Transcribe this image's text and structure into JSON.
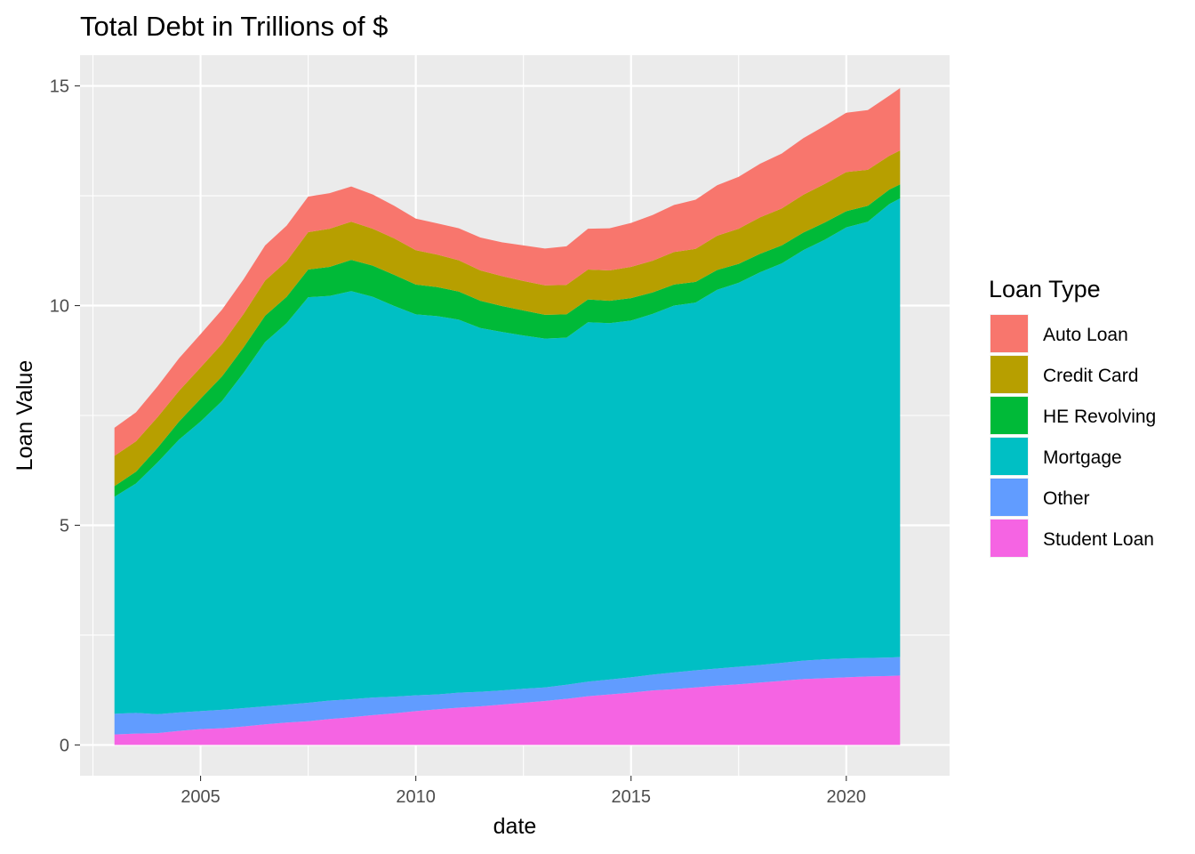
{
  "chart_data": {
    "type": "area",
    "stacked": true,
    "title": "Total Debt in Trillions of $",
    "xlabel": "date",
    "ylabel": "Loan Value",
    "xlim": [
      2002.2,
      2022.4
    ],
    "ylim": [
      -0.7,
      15.7
    ],
    "x_ticks": [
      2005,
      2010,
      2015,
      2020
    ],
    "x_tick_labels": [
      "2005",
      "2010",
      "2015",
      "2020"
    ],
    "y_ticks": [
      0,
      5,
      10,
      15
    ],
    "y_tick_labels": [
      "0",
      "5",
      "10",
      "15"
    ],
    "grid": true,
    "legend": {
      "title": "Loan Type",
      "position": "right",
      "entries": [
        "Auto Loan",
        "Credit Card",
        "HE Revolving",
        "Mortgage",
        "Other",
        "Student Loan"
      ]
    },
    "x": [
      2003.0,
      2003.5,
      2004.0,
      2004.5,
      2005.0,
      2005.5,
      2006.0,
      2006.5,
      2007.0,
      2007.5,
      2008.0,
      2008.5,
      2009.0,
      2009.5,
      2010.0,
      2010.5,
      2011.0,
      2011.5,
      2012.0,
      2012.5,
      2013.0,
      2013.5,
      2014.0,
      2014.5,
      2015.0,
      2015.5,
      2016.0,
      2016.5,
      2017.0,
      2017.5,
      2018.0,
      2018.5,
      2019.0,
      2019.5,
      2020.0,
      2020.5,
      2021.0,
      2021.25
    ],
    "series": [
      {
        "name": "Student Loan",
        "color": "#f564e3",
        "values": [
          0.24,
          0.26,
          0.27,
          0.32,
          0.36,
          0.38,
          0.42,
          0.47,
          0.51,
          0.54,
          0.59,
          0.63,
          0.68,
          0.72,
          0.77,
          0.81,
          0.85,
          0.88,
          0.92,
          0.96,
          1.0,
          1.05,
          1.11,
          1.15,
          1.19,
          1.24,
          1.27,
          1.31,
          1.35,
          1.38,
          1.42,
          1.46,
          1.5,
          1.52,
          1.54,
          1.56,
          1.57,
          1.58
        ]
      },
      {
        "name": "Other",
        "color": "#619cff",
        "values": [
          0.47,
          0.47,
          0.43,
          0.42,
          0.41,
          0.42,
          0.42,
          0.41,
          0.41,
          0.42,
          0.42,
          0.41,
          0.4,
          0.38,
          0.36,
          0.34,
          0.34,
          0.33,
          0.32,
          0.32,
          0.31,
          0.32,
          0.33,
          0.34,
          0.35,
          0.36,
          0.38,
          0.39,
          0.39,
          0.4,
          0.4,
          0.41,
          0.42,
          0.43,
          0.43,
          0.42,
          0.42,
          0.42
        ]
      },
      {
        "name": "Mortgage",
        "color": "#00bfc4",
        "values": [
          4.94,
          5.22,
          5.73,
          6.21,
          6.59,
          7.03,
          7.63,
          8.29,
          8.68,
          9.23,
          9.21,
          9.29,
          9.12,
          8.89,
          8.67,
          8.61,
          8.49,
          8.28,
          8.16,
          8.04,
          7.94,
          7.9,
          8.18,
          8.11,
          8.12,
          8.21,
          8.35,
          8.37,
          8.62,
          8.74,
          8.94,
          9.09,
          9.34,
          9.55,
          9.81,
          9.93,
          10.32,
          10.44
        ]
      },
      {
        "name": "HE Revolving",
        "color": "#00ba38",
        "values": [
          0.24,
          0.27,
          0.33,
          0.41,
          0.52,
          0.56,
          0.58,
          0.6,
          0.6,
          0.63,
          0.66,
          0.71,
          0.71,
          0.71,
          0.68,
          0.66,
          0.64,
          0.62,
          0.59,
          0.57,
          0.54,
          0.53,
          0.52,
          0.51,
          0.51,
          0.49,
          0.48,
          0.47,
          0.45,
          0.43,
          0.42,
          0.41,
          0.4,
          0.39,
          0.37,
          0.36,
          0.33,
          0.32
        ]
      },
      {
        "name": "Credit Card",
        "color": "#b79f00",
        "values": [
          0.69,
          0.69,
          0.7,
          0.7,
          0.71,
          0.74,
          0.76,
          0.8,
          0.81,
          0.85,
          0.87,
          0.87,
          0.84,
          0.83,
          0.78,
          0.74,
          0.71,
          0.69,
          0.68,
          0.67,
          0.67,
          0.67,
          0.68,
          0.69,
          0.71,
          0.72,
          0.74,
          0.75,
          0.78,
          0.8,
          0.83,
          0.84,
          0.86,
          0.88,
          0.89,
          0.82,
          0.77,
          0.77
        ]
      },
      {
        "name": "Auto Loan",
        "color": "#f8766d",
        "values": [
          0.64,
          0.66,
          0.7,
          0.74,
          0.76,
          0.78,
          0.79,
          0.8,
          0.81,
          0.81,
          0.81,
          0.8,
          0.78,
          0.74,
          0.72,
          0.71,
          0.73,
          0.75,
          0.77,
          0.81,
          0.84,
          0.88,
          0.93,
          0.96,
          1.0,
          1.04,
          1.07,
          1.12,
          1.15,
          1.18,
          1.22,
          1.25,
          1.29,
          1.32,
          1.35,
          1.36,
          1.37,
          1.42
        ]
      }
    ]
  }
}
